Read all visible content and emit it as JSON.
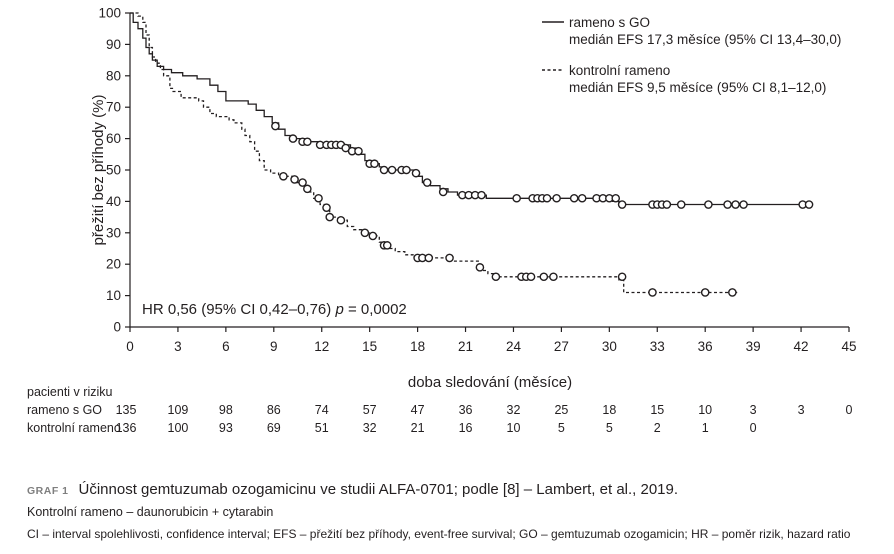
{
  "chart_data": {
    "type": "line",
    "subtype": "kaplan-meier",
    "ylabel": "přežití bez příhody (%)",
    "xlabel": "doba sledování (měsíce)",
    "xlim": [
      0,
      45
    ],
    "ylim": [
      0,
      100
    ],
    "x_ticks": [
      0,
      3,
      6,
      9,
      12,
      15,
      18,
      21,
      24,
      27,
      30,
      33,
      36,
      39,
      42,
      45
    ],
    "y_ticks": [
      0,
      10,
      20,
      30,
      40,
      50,
      60,
      70,
      80,
      90,
      100
    ],
    "legend_position": "top-right",
    "series": [
      {
        "name": "rameno s GO",
        "note": "medián EFS 17,3 měsíce (95% CI 13,4–30,0)",
        "style": "solid",
        "steps": [
          [
            0,
            100
          ],
          [
            0.2,
            97
          ],
          [
            0.5,
            95
          ],
          [
            0.8,
            92
          ],
          [
            1.0,
            89
          ],
          [
            1.2,
            87
          ],
          [
            1.4,
            85
          ],
          [
            1.7,
            83
          ],
          [
            2.1,
            82
          ],
          [
            2.6,
            81
          ],
          [
            3.3,
            80
          ],
          [
            4.2,
            79
          ],
          [
            5.0,
            77
          ],
          [
            5.5,
            75
          ],
          [
            6.0,
            72
          ],
          [
            7.4,
            71
          ],
          [
            7.9,
            69
          ],
          [
            8.4,
            67
          ],
          [
            8.9,
            65
          ],
          [
            9.3,
            63
          ],
          [
            9.7,
            61
          ],
          [
            10.1,
            60
          ],
          [
            11.2,
            59
          ],
          [
            11.8,
            58
          ],
          [
            13.8,
            57
          ],
          [
            14.2,
            55
          ],
          [
            14.7,
            53
          ],
          [
            15.1,
            52
          ],
          [
            15.6,
            51
          ],
          [
            16.0,
            50
          ],
          [
            17.9,
            48
          ],
          [
            18.3,
            46
          ],
          [
            18.8,
            45
          ],
          [
            19.4,
            44
          ],
          [
            19.9,
            43
          ],
          [
            20.5,
            42
          ],
          [
            22.3,
            41
          ],
          [
            30.2,
            40
          ],
          [
            30.6,
            39
          ],
          [
            42.5,
            39
          ]
        ],
        "censored": [
          [
            9.1,
            64
          ],
          [
            10.2,
            60
          ],
          [
            10.8,
            59
          ],
          [
            11.1,
            59
          ],
          [
            11.9,
            58
          ],
          [
            12.3,
            58
          ],
          [
            12.6,
            58
          ],
          [
            12.9,
            58
          ],
          [
            13.2,
            58
          ],
          [
            13.5,
            57
          ],
          [
            13.9,
            56
          ],
          [
            14.3,
            56
          ],
          [
            15.0,
            52
          ],
          [
            15.3,
            52
          ],
          [
            15.9,
            50
          ],
          [
            16.4,
            50
          ],
          [
            17.0,
            50
          ],
          [
            17.3,
            50
          ],
          [
            17.9,
            49
          ],
          [
            18.6,
            46
          ],
          [
            19.6,
            43
          ],
          [
            20.8,
            42
          ],
          [
            21.2,
            42
          ],
          [
            21.6,
            42
          ],
          [
            22.0,
            42
          ],
          [
            24.2,
            41
          ],
          [
            25.2,
            41
          ],
          [
            25.5,
            41
          ],
          [
            25.8,
            41
          ],
          [
            26.1,
            41
          ],
          [
            26.7,
            41
          ],
          [
            27.8,
            41
          ],
          [
            28.3,
            41
          ],
          [
            29.2,
            41
          ],
          [
            29.6,
            41
          ],
          [
            30.0,
            41
          ],
          [
            30.4,
            41
          ],
          [
            30.8,
            39
          ],
          [
            32.7,
            39
          ],
          [
            33.0,
            39
          ],
          [
            33.3,
            39
          ],
          [
            33.6,
            39
          ],
          [
            34.5,
            39
          ],
          [
            36.2,
            39
          ],
          [
            37.4,
            39
          ],
          [
            37.9,
            39
          ],
          [
            38.4,
            39
          ],
          [
            42.1,
            39
          ],
          [
            42.5,
            39
          ]
        ]
      },
      {
        "name": "kontrolní rameno",
        "note": "medián EFS 9,5 měsíce (95% CI 8,1–12,0)",
        "style": "dashed",
        "steps": [
          [
            0,
            100
          ],
          [
            0.5,
            99
          ],
          [
            0.8,
            97
          ],
          [
            1.0,
            93
          ],
          [
            1.2,
            89
          ],
          [
            1.4,
            86
          ],
          [
            1.6,
            84
          ],
          [
            1.9,
            82
          ],
          [
            2.1,
            80
          ],
          [
            2.5,
            76
          ],
          [
            2.7,
            75
          ],
          [
            3.2,
            73
          ],
          [
            4.3,
            72
          ],
          [
            4.6,
            70
          ],
          [
            5.0,
            68
          ],
          [
            5.4,
            67
          ],
          [
            6.2,
            66
          ],
          [
            6.5,
            65
          ],
          [
            7.0,
            63
          ],
          [
            7.2,
            61
          ],
          [
            7.5,
            59
          ],
          [
            7.8,
            56
          ],
          [
            8.1,
            53
          ],
          [
            8.4,
            50
          ],
          [
            8.8,
            49
          ],
          [
            9.3,
            48
          ],
          [
            9.7,
            48
          ],
          [
            10.4,
            46
          ],
          [
            10.8,
            45
          ],
          [
            11.2,
            43
          ],
          [
            11.5,
            41
          ],
          [
            11.9,
            39
          ],
          [
            12.2,
            37
          ],
          [
            12.5,
            35
          ],
          [
            13.0,
            34
          ],
          [
            13.6,
            32
          ],
          [
            14.0,
            31
          ],
          [
            14.5,
            30
          ],
          [
            15.1,
            29
          ],
          [
            15.6,
            27
          ],
          [
            16.0,
            25
          ],
          [
            16.6,
            24
          ],
          [
            17.2,
            23
          ],
          [
            17.8,
            22
          ],
          [
            20.2,
            21
          ],
          [
            21.8,
            20
          ],
          [
            22.0,
            18
          ],
          [
            22.4,
            17
          ],
          [
            22.8,
            16
          ],
          [
            30.6,
            15
          ],
          [
            30.9,
            11
          ],
          [
            38.0,
            11
          ]
        ],
        "censored": [
          [
            9.6,
            48
          ],
          [
            10.3,
            47
          ],
          [
            10.8,
            46
          ],
          [
            11.1,
            44
          ],
          [
            11.8,
            41
          ],
          [
            12.3,
            38
          ],
          [
            12.5,
            35
          ],
          [
            13.2,
            34
          ],
          [
            14.7,
            30
          ],
          [
            15.2,
            29
          ],
          [
            15.9,
            26
          ],
          [
            16.1,
            26
          ],
          [
            18.0,
            22
          ],
          [
            18.3,
            22
          ],
          [
            18.7,
            22
          ],
          [
            20.0,
            22
          ],
          [
            21.9,
            19
          ],
          [
            22.9,
            16
          ],
          [
            24.5,
            16
          ],
          [
            24.8,
            16
          ],
          [
            25.1,
            16
          ],
          [
            25.9,
            16
          ],
          [
            26.5,
            16
          ],
          [
            30.8,
            16
          ],
          [
            32.7,
            11
          ],
          [
            36.0,
            11
          ],
          [
            37.7,
            11
          ]
        ]
      }
    ],
    "annotation": "HR 0,56 (95% CI 0,42–0,76) p = 0,0002"
  },
  "legend": {
    "items": [
      {
        "line1": "rameno s GO",
        "line2": "medián EFS 17,3 měsíce (95% CI 13,4–30,0)"
      },
      {
        "line1": "kontrolní rameno",
        "line2": "medián EFS 9,5 měsíce (95% CI 8,1–12,0)"
      }
    ]
  },
  "annotation": {
    "prefix": "HR 0,56 (95% CI 0,42–0,76) ",
    "p_symbol": "p",
    "suffix": " = 0,0002"
  },
  "risk_table": {
    "title": "pacienti v riziku",
    "rows": [
      {
        "label": "rameno s GO",
        "values": [
          "135",
          "109",
          "98",
          "86",
          "74",
          "57",
          "47",
          "36",
          "32",
          "25",
          "18",
          "15",
          "10",
          "3",
          "3",
          "0"
        ]
      },
      {
        "label": "kontrolní rameno",
        "values": [
          "136",
          "100",
          "93",
          "69",
          "51",
          "32",
          "21",
          "16",
          "10",
          "5",
          "5",
          "2",
          "1",
          "0"
        ]
      }
    ]
  },
  "caption": {
    "label": "GRAF 1",
    "title": "Účinnost gemtuzumab ozogamicinu ve studii ALFA-0701; podle [8] – Lambert, et al., 2019.",
    "line1": "Kontrolní rameno – daunorubicin + cytarabin",
    "line2": "CI – interval spolehlivosti, confidence interval; EFS – přežití bez příhody, event-free survival; GO – gemtuzumab ozogamicin; HR – poměr rizik, hazard ratio"
  }
}
